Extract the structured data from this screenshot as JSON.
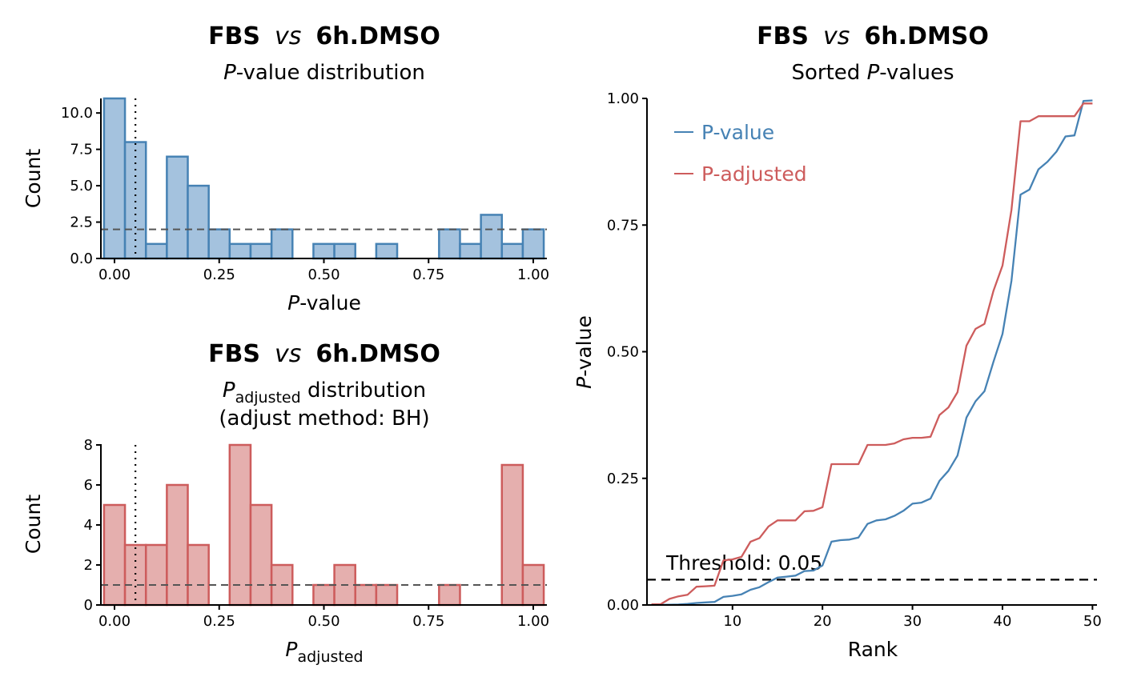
{
  "chart_data": [
    {
      "type": "bar",
      "title": {
        "a": "FBS",
        "b": "vs",
        "c": "6h.DMSO"
      },
      "subtitle": {
        "p": "P",
        "rest": "-value distribution"
      },
      "xlabel": {
        "p": "P",
        "rest": "-value"
      },
      "ylabel": "Count",
      "xlim": [
        -0.0325,
        1.0325
      ],
      "ylim": [
        0,
        11
      ],
      "x_ticks": [
        {
          "v": 0,
          "label": "0.00"
        },
        {
          "v": 0.25,
          "label": "0.25"
        },
        {
          "v": 0.5,
          "label": "0.50"
        },
        {
          "v": 0.75,
          "label": "0.75"
        },
        {
          "v": 1,
          "label": "1.00"
        }
      ],
      "y_ticks": [
        {
          "v": 0,
          "label": "0.0"
        },
        {
          "v": 2.5,
          "label": "2.5"
        },
        {
          "v": 5,
          "label": "5.0"
        },
        {
          "v": 7.5,
          "label": "7.5"
        },
        {
          "v": 10,
          "label": "10.0"
        }
      ],
      "bin_width": 0.05,
      "bin_centers": [
        0,
        0.05,
        0.1,
        0.15,
        0.2,
        0.25,
        0.3,
        0.35,
        0.4,
        0.45,
        0.5,
        0.55,
        0.6,
        0.65,
        0.7,
        0.75,
        0.8,
        0.85,
        0.9,
        0.95,
        1.0
      ],
      "values": [
        11,
        8,
        1,
        7,
        5,
        2,
        1,
        1,
        2,
        0,
        1,
        1,
        0,
        1,
        0,
        0,
        2,
        1,
        3,
        1,
        2
      ],
      "hline": 2,
      "vline": 0.05,
      "fill": "#a4c2de",
      "stroke": "#4682b4",
      "grid": false
    },
    {
      "type": "bar",
      "title": {
        "a": "FBS",
        "b": "vs",
        "c": "6h.DMSO"
      },
      "subtitle": {
        "p": "P",
        "sub": "adjusted",
        "rest": " distribution",
        "line2": "(adjust method: BH)"
      },
      "xlabel": {
        "p": "P",
        "sub": "adjusted"
      },
      "ylabel": "Count",
      "xlim": [
        -0.0325,
        1.0325
      ],
      "ylim": [
        0,
        8
      ],
      "x_ticks": [
        {
          "v": 0,
          "label": "0.00"
        },
        {
          "v": 0.25,
          "label": "0.25"
        },
        {
          "v": 0.5,
          "label": "0.50"
        },
        {
          "v": 0.75,
          "label": "0.75"
        },
        {
          "v": 1,
          "label": "1.00"
        }
      ],
      "y_ticks": [
        {
          "v": 0,
          "label": "0"
        },
        {
          "v": 2,
          "label": "2"
        },
        {
          "v": 4,
          "label": "4"
        },
        {
          "v": 6,
          "label": "6"
        },
        {
          "v": 8,
          "label": "8"
        }
      ],
      "bin_width": 0.05,
      "bin_centers": [
        0,
        0.05,
        0.1,
        0.15,
        0.2,
        0.25,
        0.3,
        0.35,
        0.4,
        0.45,
        0.5,
        0.55,
        0.6,
        0.65,
        0.7,
        0.75,
        0.8,
        0.85,
        0.9,
        0.95,
        1.0
      ],
      "values": [
        5,
        3,
        3,
        6,
        3,
        0,
        8,
        5,
        2,
        0,
        1,
        2,
        1,
        1,
        0,
        0,
        1,
        0,
        0,
        7,
        2
      ],
      "hline": 1,
      "vline": 0.05,
      "fill": "#e5afae",
      "stroke": "#cd5c5c",
      "grid": false
    },
    {
      "type": "line",
      "title": {
        "a": "FBS",
        "b": "vs",
        "c": "6h.DMSO"
      },
      "subtitle": {
        "pre": "Sorted ",
        "p": "P",
        "rest": "-values"
      },
      "xlabel": "Rank",
      "ylabel": {
        "p": "P",
        "rest": "-value"
      },
      "xlim": [
        0.5,
        50.5
      ],
      "ylim": [
        0,
        1
      ],
      "x_ticks": [
        {
          "v": 10,
          "label": "10"
        },
        {
          "v": 20,
          "label": "20"
        },
        {
          "v": 30,
          "label": "30"
        },
        {
          "v": 40,
          "label": "40"
        },
        {
          "v": 50,
          "label": "50"
        }
      ],
      "y_ticks": [
        {
          "v": 0,
          "label": "0.00"
        },
        {
          "v": 0.25,
          "label": "0.25"
        },
        {
          "v": 0.5,
          "label": "0.50"
        },
        {
          "v": 0.75,
          "label": "0.75"
        },
        {
          "v": 1,
          "label": "1.00"
        }
      ],
      "x": [
        1,
        2,
        3,
        4,
        5,
        6,
        7,
        8,
        9,
        10,
        11,
        12,
        13,
        14,
        15,
        16,
        17,
        18,
        19,
        20,
        21,
        22,
        23,
        24,
        25,
        26,
        27,
        28,
        29,
        30,
        31,
        32,
        33,
        34,
        35,
        36,
        37,
        38,
        39,
        40,
        41,
        42,
        43,
        44,
        45,
        46,
        47,
        48,
        49,
        50
      ],
      "series": [
        {
          "name": "P-value",
          "color": "#4682b4",
          "values": [
            0.0001,
            0.0003,
            0.0006,
            0.001,
            0.002,
            0.004,
            0.005,
            0.006,
            0.016,
            0.018,
            0.021,
            0.03,
            0.035,
            0.045,
            0.054,
            0.056,
            0.058,
            0.067,
            0.068,
            0.078,
            0.125,
            0.128,
            0.129,
            0.133,
            0.16,
            0.167,
            0.169,
            0.176,
            0.186,
            0.2,
            0.202,
            0.21,
            0.245,
            0.265,
            0.295,
            0.37,
            0.402,
            0.422,
            0.48,
            0.535,
            0.64,
            0.81,
            0.82,
            0.86,
            0.875,
            0.895,
            0.925,
            0.927,
            0.995,
            0.996
          ]
        },
        {
          "name": "P-adjusted",
          "color": "#cd5c5c",
          "values": [
            0.0015,
            0.0015,
            0.012,
            0.017,
            0.02,
            0.036,
            0.037,
            0.038,
            0.088,
            0.09,
            0.095,
            0.125,
            0.132,
            0.155,
            0.167,
            0.167,
            0.167,
            0.185,
            0.186,
            0.193,
            0.278,
            0.278,
            0.278,
            0.278,
            0.316,
            0.316,
            0.316,
            0.319,
            0.327,
            0.33,
            0.33,
            0.332,
            0.375,
            0.39,
            0.42,
            0.512,
            0.545,
            0.555,
            0.62,
            0.67,
            0.78,
            0.955,
            0.955,
            0.965,
            0.965,
            0.965,
            0.965,
            0.965,
            0.99,
            0.99
          ]
        }
      ],
      "threshold": {
        "value": 0.05,
        "label": "Threshold: 0.05"
      },
      "legend_position": "top-left",
      "grid": false
    }
  ]
}
